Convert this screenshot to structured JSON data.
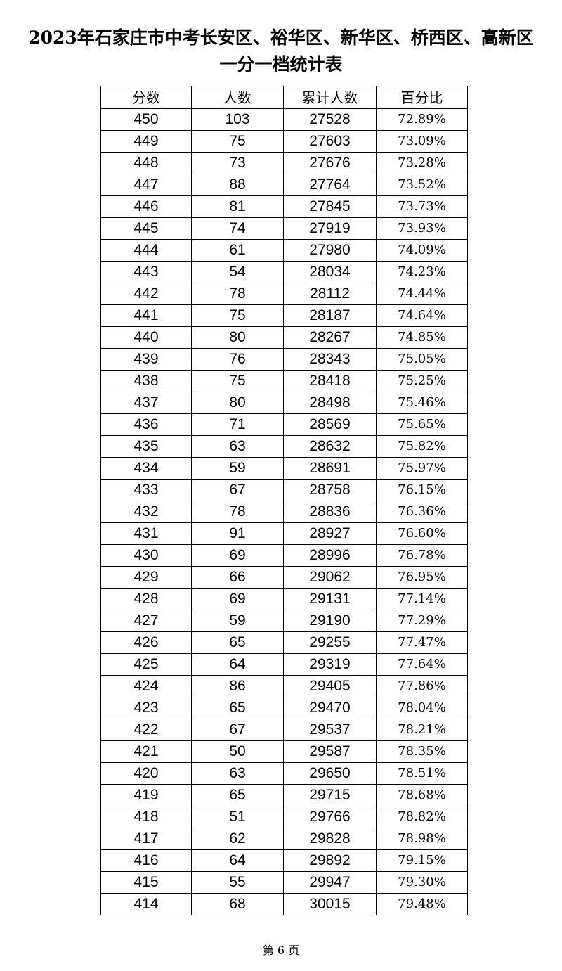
{
  "header": {
    "title_line1": "2023年石家庄市中考长安区、裕华区、新华区、桥西区、高新区",
    "title_line2": "一分一档统计表"
  },
  "table": {
    "columns": [
      "分数",
      "人数",
      "累计人数",
      "百分比"
    ],
    "rows": [
      [
        "450",
        "103",
        "27528",
        "72.89%"
      ],
      [
        "449",
        "75",
        "27603",
        "73.09%"
      ],
      [
        "448",
        "73",
        "27676",
        "73.28%"
      ],
      [
        "447",
        "88",
        "27764",
        "73.52%"
      ],
      [
        "446",
        "81",
        "27845",
        "73.73%"
      ],
      [
        "445",
        "74",
        "27919",
        "73.93%"
      ],
      [
        "444",
        "61",
        "27980",
        "74.09%"
      ],
      [
        "443",
        "54",
        "28034",
        "74.23%"
      ],
      [
        "442",
        "78",
        "28112",
        "74.44%"
      ],
      [
        "441",
        "75",
        "28187",
        "74.64%"
      ],
      [
        "440",
        "80",
        "28267",
        "74.85%"
      ],
      [
        "439",
        "76",
        "28343",
        "75.05%"
      ],
      [
        "438",
        "75",
        "28418",
        "75.25%"
      ],
      [
        "437",
        "80",
        "28498",
        "75.46%"
      ],
      [
        "436",
        "71",
        "28569",
        "75.65%"
      ],
      [
        "435",
        "63",
        "28632",
        "75.82%"
      ],
      [
        "434",
        "59",
        "28691",
        "75.97%"
      ],
      [
        "433",
        "67",
        "28758",
        "76.15%"
      ],
      [
        "432",
        "78",
        "28836",
        "76.36%"
      ],
      [
        "431",
        "91",
        "28927",
        "76.60%"
      ],
      [
        "430",
        "69",
        "28996",
        "76.78%"
      ],
      [
        "429",
        "66",
        "29062",
        "76.95%"
      ],
      [
        "428",
        "69",
        "29131",
        "77.14%"
      ],
      [
        "427",
        "59",
        "29190",
        "77.29%"
      ],
      [
        "426",
        "65",
        "29255",
        "77.47%"
      ],
      [
        "425",
        "64",
        "29319",
        "77.64%"
      ],
      [
        "424",
        "86",
        "29405",
        "77.86%"
      ],
      [
        "423",
        "65",
        "29470",
        "78.04%"
      ],
      [
        "422",
        "67",
        "29537",
        "78.21%"
      ],
      [
        "421",
        "50",
        "29587",
        "78.35%"
      ],
      [
        "420",
        "63",
        "29650",
        "78.51%"
      ],
      [
        "419",
        "65",
        "29715",
        "78.68%"
      ],
      [
        "418",
        "51",
        "29766",
        "78.82%"
      ],
      [
        "417",
        "62",
        "29828",
        "78.98%"
      ],
      [
        "416",
        "64",
        "29892",
        "79.15%"
      ],
      [
        "415",
        "55",
        "29947",
        "79.30%"
      ],
      [
        "414",
        "68",
        "30015",
        "79.48%"
      ]
    ]
  },
  "footer": {
    "page": "第 6 页"
  }
}
